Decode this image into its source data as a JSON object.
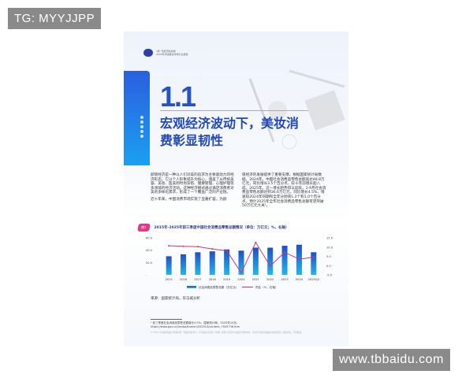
{
  "watermarks": {
    "top_left": "TG: MYYJJPP",
    "bottom_right": "www.tbbaidu.com"
  },
  "header": {
    "line1": "\"颜\" 值经济新篇章",
    "line2": "2025年中国美妆市场行业报告"
  },
  "section": {
    "number": "1.1",
    "title": "宏观经济波动下，美妆消费彰显韧性"
  },
  "body": {
    "left": "颜值经济是一种以人们对美的追求为主要驱动力的经济形态。它以个人形象提升为核心，涵盖了从传统美容、美妆、医美到时尚穿搭、健康管理、心理护理等多领域的经济活动。这种经济模式通过满足消费者对美的多样化需求，形成了一个覆盖广泛的产业链。",
    "left2": "近十年来，中国消费市场实现了显著扩容，为颜",
    "right": "值经济的发展提供了重要支撑。根据国家统计局数据，2024年，中国社会消费品零售总额高达48.8万亿元，同比增长3.5个百分点，较十年前增长超八成。2025年，这一增长趋势得以延续，1-9月社会消费品零售总额达到36.6万亿元，同比增长4.5%，增速较2024年同期和全年分别快1.2个和1.0个百分点，预计2025年全年社会消费品零售总额有望突破50万亿元大关¹。"
  },
  "chart_tag": "图1",
  "chart_data": {
    "type": "bar",
    "title": "2015年-2025年前三季度中国社会消费品零售总额情况（单位：万亿元；%，右轴）",
    "categories": [
      "2015",
      "2016",
      "2017",
      "2018",
      "2019",
      "2020",
      "2021",
      "2022",
      "2023",
      "2024",
      "2025Q3"
    ],
    "series": [
      {
        "name": "社会消费品零售总额（万亿元）",
        "type": "bar",
        "values": [
          30.1,
          33.2,
          36.6,
          38.1,
          41.2,
          39.2,
          44.1,
          44.0,
          47.1,
          48.8,
          36.6
        ],
        "color": "#1f6fd8"
      },
      {
        "name": "同比（%，右轴）",
        "type": "line",
        "values": [
          10.7,
          10.4,
          10.2,
          9.0,
          8.0,
          -3.9,
          12.5,
          -0.2,
          7.2,
          3.5,
          4.5
        ],
        "color": "#c8377a"
      }
    ],
    "y_left": {
      "ticks": [
        "60.0",
        "40.0",
        "20.0",
        "-"
      ],
      "range": [
        0,
        60
      ]
    },
    "y_right": {
      "ticks": [
        "15.0",
        "10.0",
        "5.0",
        "0.0",
        "-5.0"
      ],
      "range": [
        -5,
        15
      ]
    },
    "grid": false,
    "legend": "bottom"
  },
  "source": "来源：国家统计局，毕马威分析",
  "footnote": {
    "line1": "¹ 前三季度社会消费品零售总额增长4.5%，国家统计局，2025年10月。",
    "line2": "https://www.gov.cn/lianbo/bumen/202510/content_7045736.htm"
  },
  "fine_print": "© 2025 毕马威华振会计师事务所（特殊普通合伙）、毕马威企业咨询（中国）有限公司及毕马威会计师事务所，均为毕马威全球组织中的成员所，版权所有，不得转载。"
}
